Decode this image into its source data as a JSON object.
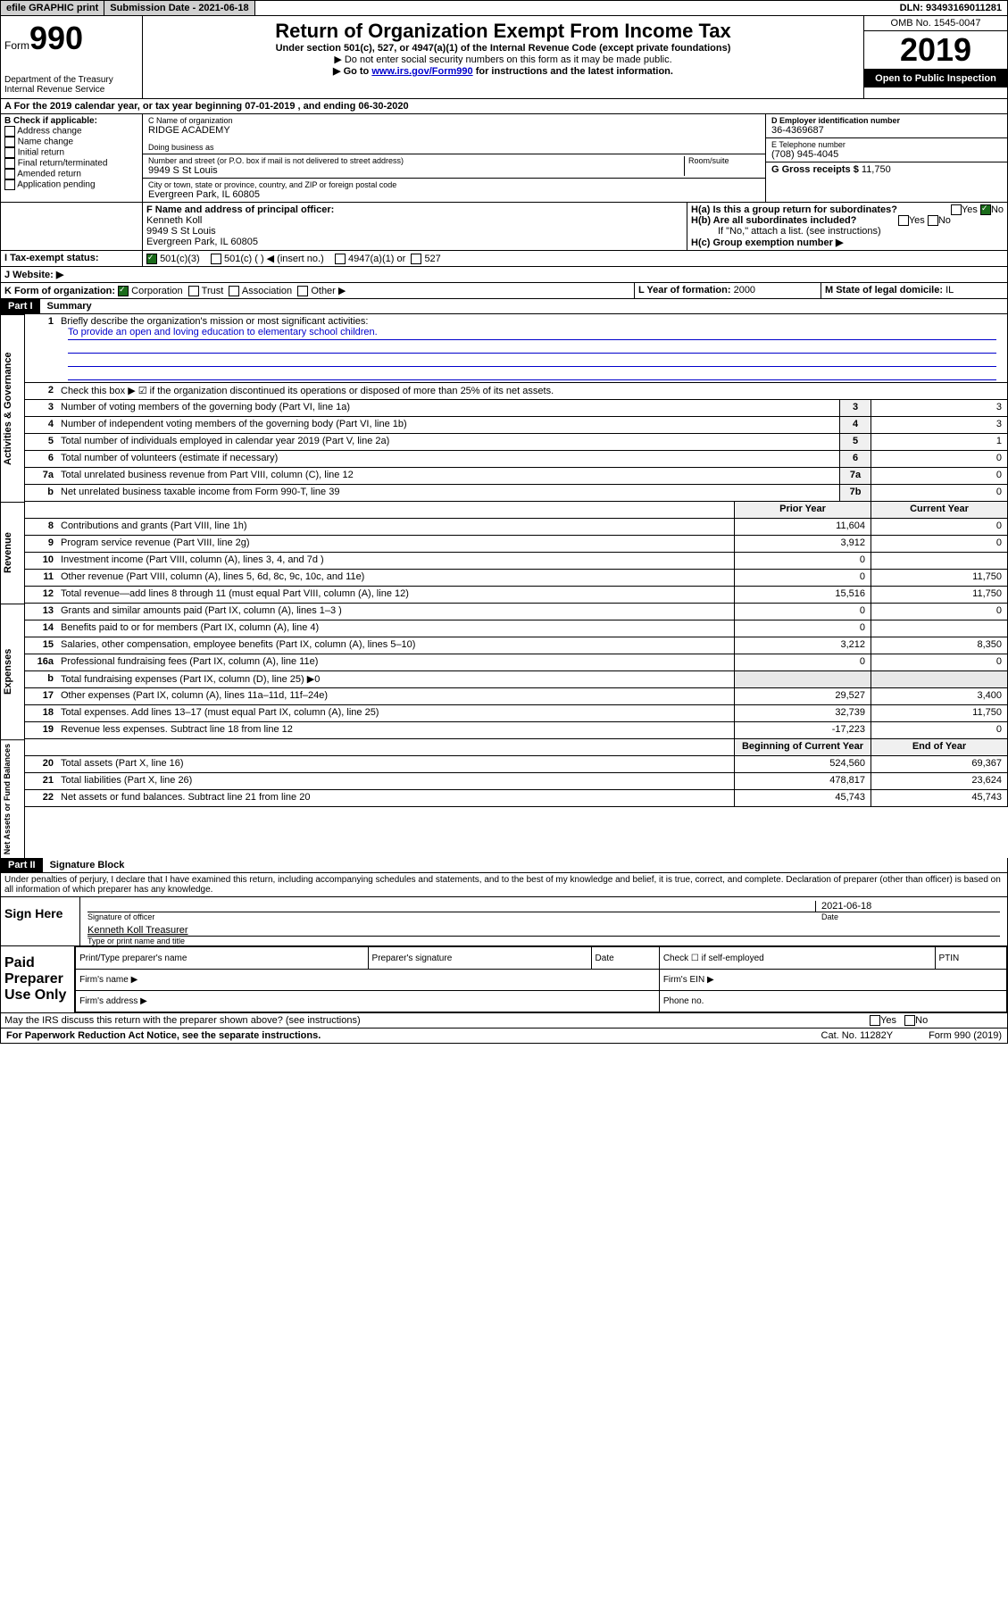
{
  "topbar": {
    "efile": "efile GRAPHIC print",
    "submission": "Submission Date - 2021-06-18",
    "dln": "DLN: 93493169011281"
  },
  "header": {
    "form_word": "Form",
    "form_number": "990",
    "dept": "Department of the Treasury\nInternal Revenue Service",
    "title": "Return of Organization Exempt From Income Tax",
    "subtitle": "Under section 501(c), 527, or 4947(a)(1) of the Internal Revenue Code (except private foundations)",
    "note1": "▶ Do not enter social security numbers on this form as it may be made public.",
    "note2_pre": "▶ Go to ",
    "note2_link": "www.irs.gov/Form990",
    "note2_post": " for instructions and the latest information.",
    "omb": "OMB No. 1545-0047",
    "year": "2019",
    "open": "Open to Public Inspection"
  },
  "sectionA": "A For the 2019 calendar year, or tax year beginning 07-01-2019   , and ending 06-30-2020",
  "boxB": {
    "title": "B Check if applicable:",
    "opts": [
      "Address change",
      "Name change",
      "Initial return",
      "Final return/terminated",
      "Amended return",
      "Application pending"
    ]
  },
  "boxC": {
    "label_name": "C Name of organization",
    "name": "RIDGE ACADEMY",
    "dba_label": "Doing business as",
    "street_label": "Number and street (or P.O. box if mail is not delivered to street address)",
    "room_label": "Room/suite",
    "street": "9949 S St Louis",
    "city_label": "City or town, state or province, country, and ZIP or foreign postal code",
    "city": "Evergreen Park, IL  60805"
  },
  "boxD": {
    "label": "D Employer identification number",
    "value": "36-4369687"
  },
  "boxE": {
    "label": "E Telephone number",
    "value": "(708) 945-4045"
  },
  "boxG": {
    "label": "G Gross receipts $",
    "value": "11,750"
  },
  "boxF": {
    "label": "F  Name and address of principal officer:",
    "name": "Kenneth Koll",
    "addr1": "9949 S St Louis",
    "addr2": "Evergreen Park, IL  60805"
  },
  "boxH": {
    "ha": "H(a)  Is this a group return for subordinates?",
    "hb": "H(b)  Are all subordinates included?",
    "hb_note": "If \"No,\" attach a list. (see instructions)",
    "hc": "H(c)  Group exemption number ▶",
    "yes": "Yes",
    "no": "No"
  },
  "boxI": {
    "label": "I    Tax-exempt status:",
    "o1": "501(c)(3)",
    "o2": "501(c) (  ) ◀ (insert no.)",
    "o3": "4947(a)(1) or",
    "o4": "527"
  },
  "boxJ": {
    "label": "J    Website: ▶"
  },
  "boxK": {
    "label": "K Form of organization:",
    "o1": "Corporation",
    "o2": "Trust",
    "o3": "Association",
    "o4": "Other ▶"
  },
  "boxL": {
    "label": "L Year of formation:",
    "value": "2000"
  },
  "boxM": {
    "label": "M State of legal domicile:",
    "value": "IL"
  },
  "part1": {
    "header": "Part I",
    "title": "Summary"
  },
  "summary": {
    "l1_label": "Briefly describe the organization's mission or most significant activities:",
    "l1_text": "To provide an open and loving education to elementary school children.",
    "l2": "Check this box ▶ ☑ if the organization discontinued its operations or disposed of more than 25% of its net assets.",
    "lines": [
      {
        "n": "3",
        "t": "Number of voting members of the governing body (Part VI, line 1a)",
        "c": "3",
        "v": "3"
      },
      {
        "n": "4",
        "t": "Number of independent voting members of the governing body (Part VI, line 1b)",
        "c": "4",
        "v": "3"
      },
      {
        "n": "5",
        "t": "Total number of individuals employed in calendar year 2019 (Part V, line 2a)",
        "c": "5",
        "v": "1"
      },
      {
        "n": "6",
        "t": "Total number of volunteers (estimate if necessary)",
        "c": "6",
        "v": "0"
      },
      {
        "n": "7a",
        "t": "Total unrelated business revenue from Part VIII, column (C), line 12",
        "c": "7a",
        "v": "0"
      },
      {
        "n": "b",
        "t": "Net unrelated business taxable income from Form 990-T, line 39",
        "c": "7b",
        "v": "0"
      }
    ],
    "year_headers": {
      "prior": "Prior Year",
      "current": "Current Year"
    },
    "revenue": [
      {
        "n": "8",
        "t": "Contributions and grants (Part VIII, line 1h)",
        "p": "11,604",
        "c": "0"
      },
      {
        "n": "9",
        "t": "Program service revenue (Part VIII, line 2g)",
        "p": "3,912",
        "c": "0"
      },
      {
        "n": "10",
        "t": "Investment income (Part VIII, column (A), lines 3, 4, and 7d )",
        "p": "0",
        "c": ""
      },
      {
        "n": "11",
        "t": "Other revenue (Part VIII, column (A), lines 5, 6d, 8c, 9c, 10c, and 11e)",
        "p": "0",
        "c": "11,750"
      },
      {
        "n": "12",
        "t": "Total revenue—add lines 8 through 11 (must equal Part VIII, column (A), line 12)",
        "p": "15,516",
        "c": "11,750"
      }
    ],
    "expenses": [
      {
        "n": "13",
        "t": "Grants and similar amounts paid (Part IX, column (A), lines 1–3 )",
        "p": "0",
        "c": "0"
      },
      {
        "n": "14",
        "t": "Benefits paid to or for members (Part IX, column (A), line 4)",
        "p": "0",
        "c": ""
      },
      {
        "n": "15",
        "t": "Salaries, other compensation, employee benefits (Part IX, column (A), lines 5–10)",
        "p": "3,212",
        "c": "8,350"
      },
      {
        "n": "16a",
        "t": "Professional fundraising fees (Part IX, column (A), line 11e)",
        "p": "0",
        "c": "0"
      },
      {
        "n": "b",
        "t": "Total fundraising expenses (Part IX, column (D), line 25) ▶0",
        "p": "",
        "c": ""
      },
      {
        "n": "17",
        "t": "Other expenses (Part IX, column (A), lines 11a–11d, 11f–24e)",
        "p": "29,527",
        "c": "3,400"
      },
      {
        "n": "18",
        "t": "Total expenses. Add lines 13–17 (must equal Part IX, column (A), line 25)",
        "p": "32,739",
        "c": "11,750"
      },
      {
        "n": "19",
        "t": "Revenue less expenses. Subtract line 18 from line 12",
        "p": "-17,223",
        "c": "0"
      }
    ],
    "balance_headers": {
      "b": "Beginning of Current Year",
      "e": "End of Year"
    },
    "balances": [
      {
        "n": "20",
        "t": "Total assets (Part X, line 16)",
        "p": "524,560",
        "c": "69,367"
      },
      {
        "n": "21",
        "t": "Total liabilities (Part X, line 26)",
        "p": "478,817",
        "c": "23,624"
      },
      {
        "n": "22",
        "t": "Net assets or fund balances. Subtract line 21 from line 20",
        "p": "45,743",
        "c": "45,743"
      }
    ]
  },
  "part2": {
    "header": "Part II",
    "title": "Signature Block"
  },
  "perjury": "Under penalties of perjury, I declare that I have examined this return, including accompanying schedules and statements, and to the best of my knowledge and belief, it is true, correct, and complete. Declaration of preparer (other than officer) is based on all information of which preparer has any knowledge.",
  "sign": {
    "here": "Sign Here",
    "date": "2021-06-18",
    "sig_label": "Signature of officer",
    "date_label": "Date",
    "name": "Kenneth Koll  Treasurer",
    "name_label": "Type or print name and title"
  },
  "paid": {
    "title": "Paid Preparer Use Only",
    "h1": "Print/Type preparer's name",
    "h2": "Preparer's signature",
    "h3": "Date",
    "h4_check": "Check ☐ if self-employed",
    "h5": "PTIN",
    "firm": "Firm's name  ▶",
    "ein": "Firm's EIN ▶",
    "addr": "Firm's address ▶",
    "phone": "Phone no."
  },
  "discuss": {
    "text": "May the IRS discuss this return with the preparer shown above? (see instructions)",
    "yes": "Yes",
    "no": "No"
  },
  "footer": {
    "left": "For Paperwork Reduction Act Notice, see the separate instructions.",
    "mid": "Cat. No. 11282Y",
    "right": "Form 990 (2019)"
  },
  "side_labels": {
    "gov": "Activities & Governance",
    "rev": "Revenue",
    "exp": "Expenses",
    "bal": "Net Assets or Fund Balances"
  }
}
